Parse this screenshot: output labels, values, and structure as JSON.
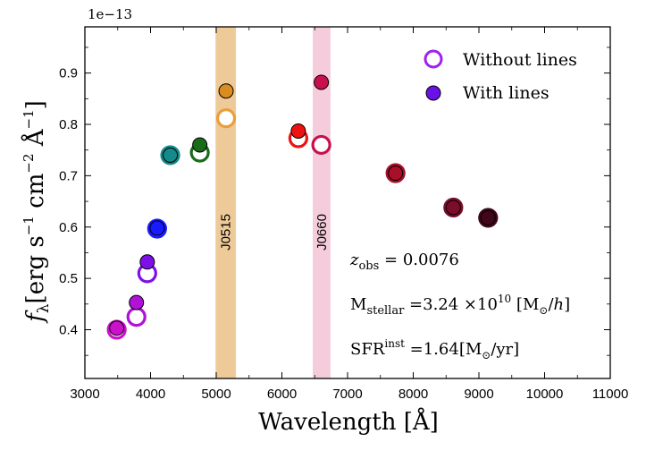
{
  "chart_data": {
    "type": "scatter",
    "title": "",
    "xlabel": "Wavelength  [Å]",
    "ylabel_parts": {
      "f": "f",
      "sub": "λ",
      "rest": "[erg  s",
      "e1": "−1",
      "mid": "  cm",
      "e2": "−2",
      "unit": "  Å",
      "e3": "−1",
      "close": "]"
    },
    "offset_text": "1e−13",
    "xlim": [
      3000,
      11000
    ],
    "ylim": [
      0.305,
      0.99
    ],
    "xticks": [
      3000,
      4000,
      5000,
      6000,
      7000,
      8000,
      9000,
      10000,
      11000
    ],
    "yticks": [
      0.4,
      0.5,
      0.6,
      0.7,
      0.8,
      0.9
    ],
    "ytick_labels": [
      "0.4",
      "0.5",
      "0.6",
      "0.7",
      "0.8",
      "0.9"
    ],
    "bands": [
      {
        "name": "J0515",
        "xmin": 4990,
        "xmax": 5300,
        "color": "#e8b46e"
      },
      {
        "name": "J0660",
        "xmin": 6470,
        "xmax": 6740,
        "color": "#f0b6cc"
      }
    ],
    "series": [
      {
        "name": "Without lines",
        "style": "open",
        "points": [
          {
            "x": 3485,
            "y": 0.4,
            "color": "#cc11cc"
          },
          {
            "x": 3785,
            "y": 0.425,
            "color": "#b012d8"
          },
          {
            "x": 3950,
            "y": 0.51,
            "color": "#7d10e8"
          },
          {
            "x": 4100,
            "y": 0.597,
            "color": "#1a1aff"
          },
          {
            "x": 4300,
            "y": 0.74,
            "color": "#158a8a"
          },
          {
            "x": 4750,
            "y": 0.745,
            "color": "#1a6b1a"
          },
          {
            "x": 5150,
            "y": 0.812,
            "color": "#e89f3c"
          },
          {
            "x": 6250,
            "y": 0.773,
            "color": "#ee1111"
          },
          {
            "x": 6600,
            "y": 0.76,
            "color": "#c8104c"
          },
          {
            "x": 7730,
            "y": 0.705,
            "color": "#a8102a"
          },
          {
            "x": 8610,
            "y": 0.638,
            "color": "#7a0d2a"
          },
          {
            "x": 9140,
            "y": 0.618,
            "color": "#40061a"
          }
        ]
      },
      {
        "name": "With lines",
        "style": "filled",
        "points": [
          {
            "x": 3485,
            "y": 0.403,
            "color": "#cc11cc"
          },
          {
            "x": 3785,
            "y": 0.453,
            "color": "#b012d8"
          },
          {
            "x": 3950,
            "y": 0.532,
            "color": "#7d10e8"
          },
          {
            "x": 4100,
            "y": 0.598,
            "color": "#1a1aff"
          },
          {
            "x": 4300,
            "y": 0.74,
            "color": "#158a8a"
          },
          {
            "x": 4750,
            "y": 0.76,
            "color": "#1a6b1a"
          },
          {
            "x": 5150,
            "y": 0.865,
            "color": "#d98c20"
          },
          {
            "x": 6250,
            "y": 0.787,
            "color": "#ee1111"
          },
          {
            "x": 6600,
            "y": 0.882,
            "color": "#c8104c"
          },
          {
            "x": 7730,
            "y": 0.705,
            "color": "#a8102a"
          },
          {
            "x": 8610,
            "y": 0.638,
            "color": "#7a0d2a"
          },
          {
            "x": 9140,
            "y": 0.618,
            "color": "#40061a"
          }
        ]
      }
    ],
    "legend": {
      "position": "top-right",
      "entries": [
        {
          "label": "Without lines",
          "style": "open",
          "color": "#a020f0"
        },
        {
          "label": "With lines",
          "style": "filled",
          "color": "#6a10e8"
        }
      ]
    },
    "annotations": {
      "z": {
        "sym": "z",
        "sub": "obs",
        "eq": " = ",
        "val": "0.0076"
      },
      "mstellar": {
        "sym": "M",
        "sub": "stellar",
        "eq": " =",
        "val": "3.24 ×10",
        "exp": "10",
        "unit1": " [M",
        "sun": "⊙",
        "unit2": "/",
        "h": "h",
        "close": "]"
      },
      "sfr": {
        "sym": "SFR",
        "sup": "inst",
        "eq": " =",
        "val": "1.64",
        "unit1": "[M",
        "sun": "⊙",
        "unit2": "/yr]"
      }
    }
  }
}
